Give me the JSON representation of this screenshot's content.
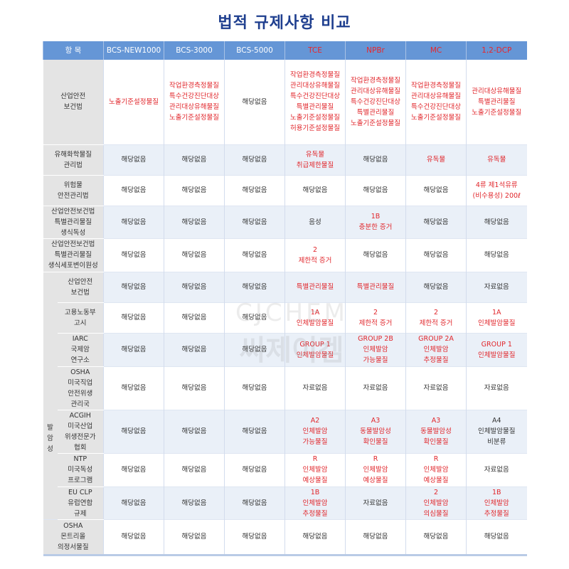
{
  "title": "법적 규제사항 비교",
  "watermark": {
    "en": "CJCHEM",
    "ko": "씨제이켐"
  },
  "colors": {
    "header_bg": "#6596d6",
    "highlight_text": "#e1262b",
    "label_bg": "#e4e4e4",
    "alt_row_bg": "#eaf0f8"
  },
  "header": {
    "item_label": "항 목",
    "columns": [
      {
        "label": "BCS-NEW1000",
        "red": false
      },
      {
        "label": "BCS-3000",
        "red": false
      },
      {
        "label": "BCS-5000",
        "red": false
      },
      {
        "label": "TCE",
        "red": true
      },
      {
        "label": "NPBr",
        "red": true
      },
      {
        "label": "MC",
        "red": true
      },
      {
        "label": "1,2-DCP",
        "red": true
      }
    ]
  },
  "group_label": "발\n암\n성",
  "rows": [
    {
      "label": "산업안전\n보건법",
      "cells": [
        {
          "t": "노출기준설정물질",
          "r": true
        },
        {
          "t": "작업환경측정물질\n특수건강진단대상\n관리대상유해물질\n노출기준설정물질",
          "r": true
        },
        {
          "t": "해당없음",
          "r": false
        },
        {
          "t": "작업환경측정물질\n관리대상유해물질\n특수건강진단대상\n특별관리물질\n노출기준설정물질\n허용기준설정물질",
          "r": true
        },
        {
          "t": "작업환경측정물질\n관리대상유해물질\n특수건강진단대상\n특별관리물질\n노출기준설정물질",
          "r": true
        },
        {
          "t": "작업환경측정물질\n관리대상유해물질\n특수건강진단대상\n노출기준설정물질",
          "r": true
        },
        {
          "t": "관리대상유해물질\n특별관리물질\n노출기준설정물질",
          "r": true
        }
      ]
    },
    {
      "label": "유해화학물질\n관리법",
      "cells": [
        {
          "t": "해당없음",
          "r": false
        },
        {
          "t": "해당없음",
          "r": false
        },
        {
          "t": "해당없음",
          "r": false
        },
        {
          "t": "유독물\n취급제한물질",
          "r": true
        },
        {
          "t": "해당없음",
          "r": false
        },
        {
          "t": "유독물",
          "r": true
        },
        {
          "t": "유독물",
          "r": true
        }
      ]
    },
    {
      "label": "위험물\n안전관리법",
      "cells": [
        {
          "t": "해당없음",
          "r": false
        },
        {
          "t": "해당없음",
          "r": false
        },
        {
          "t": "해당없음",
          "r": false
        },
        {
          "t": "해당없음",
          "r": false
        },
        {
          "t": "해당없음",
          "r": false
        },
        {
          "t": "해당없음",
          "r": false
        },
        {
          "t": "4류 제1석유류\n(비수용성) 200ℓ",
          "r": true
        }
      ]
    },
    {
      "label": "산업안전보건법\n특별관리물질\n생식독성",
      "cells": [
        {
          "t": "해당없음",
          "r": false
        },
        {
          "t": "해당없음",
          "r": false
        },
        {
          "t": "해당없음",
          "r": false
        },
        {
          "t": "음성",
          "r": false
        },
        {
          "t": "1B\n충분한 증거",
          "r": true
        },
        {
          "t": "해당없음",
          "r": false
        },
        {
          "t": "해당없음",
          "r": false
        }
      ]
    },
    {
      "label": "산업안전보건법\n특별관리물질\n생식세포변이원성",
      "cells": [
        {
          "t": "해당없음",
          "r": false
        },
        {
          "t": "해당없음",
          "r": false
        },
        {
          "t": "해당없음",
          "r": false
        },
        {
          "t": "2\n제한적 증거",
          "r": true
        },
        {
          "t": "해당없음",
          "r": false
        },
        {
          "t": "해당없음",
          "r": false
        },
        {
          "t": "해당없음",
          "r": false
        }
      ]
    },
    {
      "group": true,
      "label": "산업안전\n보건법",
      "cells": [
        {
          "t": "해당없음",
          "r": false
        },
        {
          "t": "해당없음",
          "r": false
        },
        {
          "t": "해당없음",
          "r": false
        },
        {
          "t": "특별관리물질",
          "r": true
        },
        {
          "t": "특별관리물질",
          "r": true
        },
        {
          "t": "해당없음",
          "r": false
        },
        {
          "t": "자료없음",
          "r": false
        }
      ]
    },
    {
      "group": true,
      "label": "고용노동부\n고시",
      "cells": [
        {
          "t": "해당없음",
          "r": false
        },
        {
          "t": "해당없음",
          "r": false
        },
        {
          "t": "해당없음",
          "r": false
        },
        {
          "t": "1A\n인체발암물질",
          "r": true
        },
        {
          "t": "2\n제한적 증거",
          "r": true
        },
        {
          "t": "2\n제한적 증거",
          "r": true
        },
        {
          "t": "1A\n인체발암물질",
          "r": true
        }
      ]
    },
    {
      "group": true,
      "label": "IARC\n국제암\n연구소",
      "cells": [
        {
          "t": "해당없음",
          "r": false
        },
        {
          "t": "해당없음",
          "r": false
        },
        {
          "t": "해당없음",
          "r": false
        },
        {
          "t": "GROUP 1\n인체발암물질",
          "r": true
        },
        {
          "t": "GROUP 2B\n인체발암\n가능물질",
          "r": true
        },
        {
          "t": "GROUP 2A\n인체발암\n추정물질",
          "r": true
        },
        {
          "t": "GROUP 1\n인체발암물질",
          "r": true
        }
      ]
    },
    {
      "group": true,
      "label": "OSHA\n미국직업\n안전위생\n관리국",
      "cells": [
        {
          "t": "해당없음",
          "r": false
        },
        {
          "t": "해당없음",
          "r": false
        },
        {
          "t": "해당없음",
          "r": false
        },
        {
          "t": "자료없음",
          "r": false
        },
        {
          "t": "자료없음",
          "r": false
        },
        {
          "t": "자료없음",
          "r": false
        },
        {
          "t": "자료없음",
          "r": false
        }
      ]
    },
    {
      "group": true,
      "label": "ACGIH\n미국산업\n위생전문가\n협회",
      "cells": [
        {
          "t": "해당없음",
          "r": false
        },
        {
          "t": "해당없음",
          "r": false
        },
        {
          "t": "해당없음",
          "r": false
        },
        {
          "t": "A2\n인체발암\n가능물질",
          "r": true
        },
        {
          "t": "A3\n동물발암성\n확인물질",
          "r": true
        },
        {
          "t": "A3\n동물발암성\n확인물질",
          "r": true
        },
        {
          "t": "A4\n인체발암물질\n비분류",
          "r": false
        }
      ]
    },
    {
      "group": true,
      "label": "NTP\n미국독성\n프로그램",
      "cells": [
        {
          "t": "해당없음",
          "r": false
        },
        {
          "t": "해당없음",
          "r": false
        },
        {
          "t": "해당없음",
          "r": false
        },
        {
          "t": "R\n인체발암\n예상물질",
          "r": true
        },
        {
          "t": "R\n인체발암\n예상물질",
          "r": true
        },
        {
          "t": "R\n인체발암\n예상물질",
          "r": true
        },
        {
          "t": "자료없음",
          "r": false
        }
      ]
    },
    {
      "group": true,
      "label": "EU CLP\n유럽연합\n규제",
      "cells": [
        {
          "t": "해당없음",
          "r": false
        },
        {
          "t": "해당없음",
          "r": false
        },
        {
          "t": "해당없음",
          "r": false
        },
        {
          "t": "1B\n인체발암\n추정물질",
          "r": true
        },
        {
          "t": "자료없음",
          "r": false
        },
        {
          "t": "2\n인체발암\n의심물질",
          "r": true
        },
        {
          "t": "1B\n인체발암\n추정물질",
          "r": true
        }
      ]
    },
    {
      "label": "OSHA\n몬트리올\n의정서물질",
      "cells": [
        {
          "t": "해당없음",
          "r": false
        },
        {
          "t": "해당없음",
          "r": false
        },
        {
          "t": "해당없음",
          "r": false
        },
        {
          "t": "해당없음",
          "r": false
        },
        {
          "t": "해당없음",
          "r": false
        },
        {
          "t": "해당없음",
          "r": false
        },
        {
          "t": "해당없음",
          "r": false
        }
      ]
    }
  ]
}
